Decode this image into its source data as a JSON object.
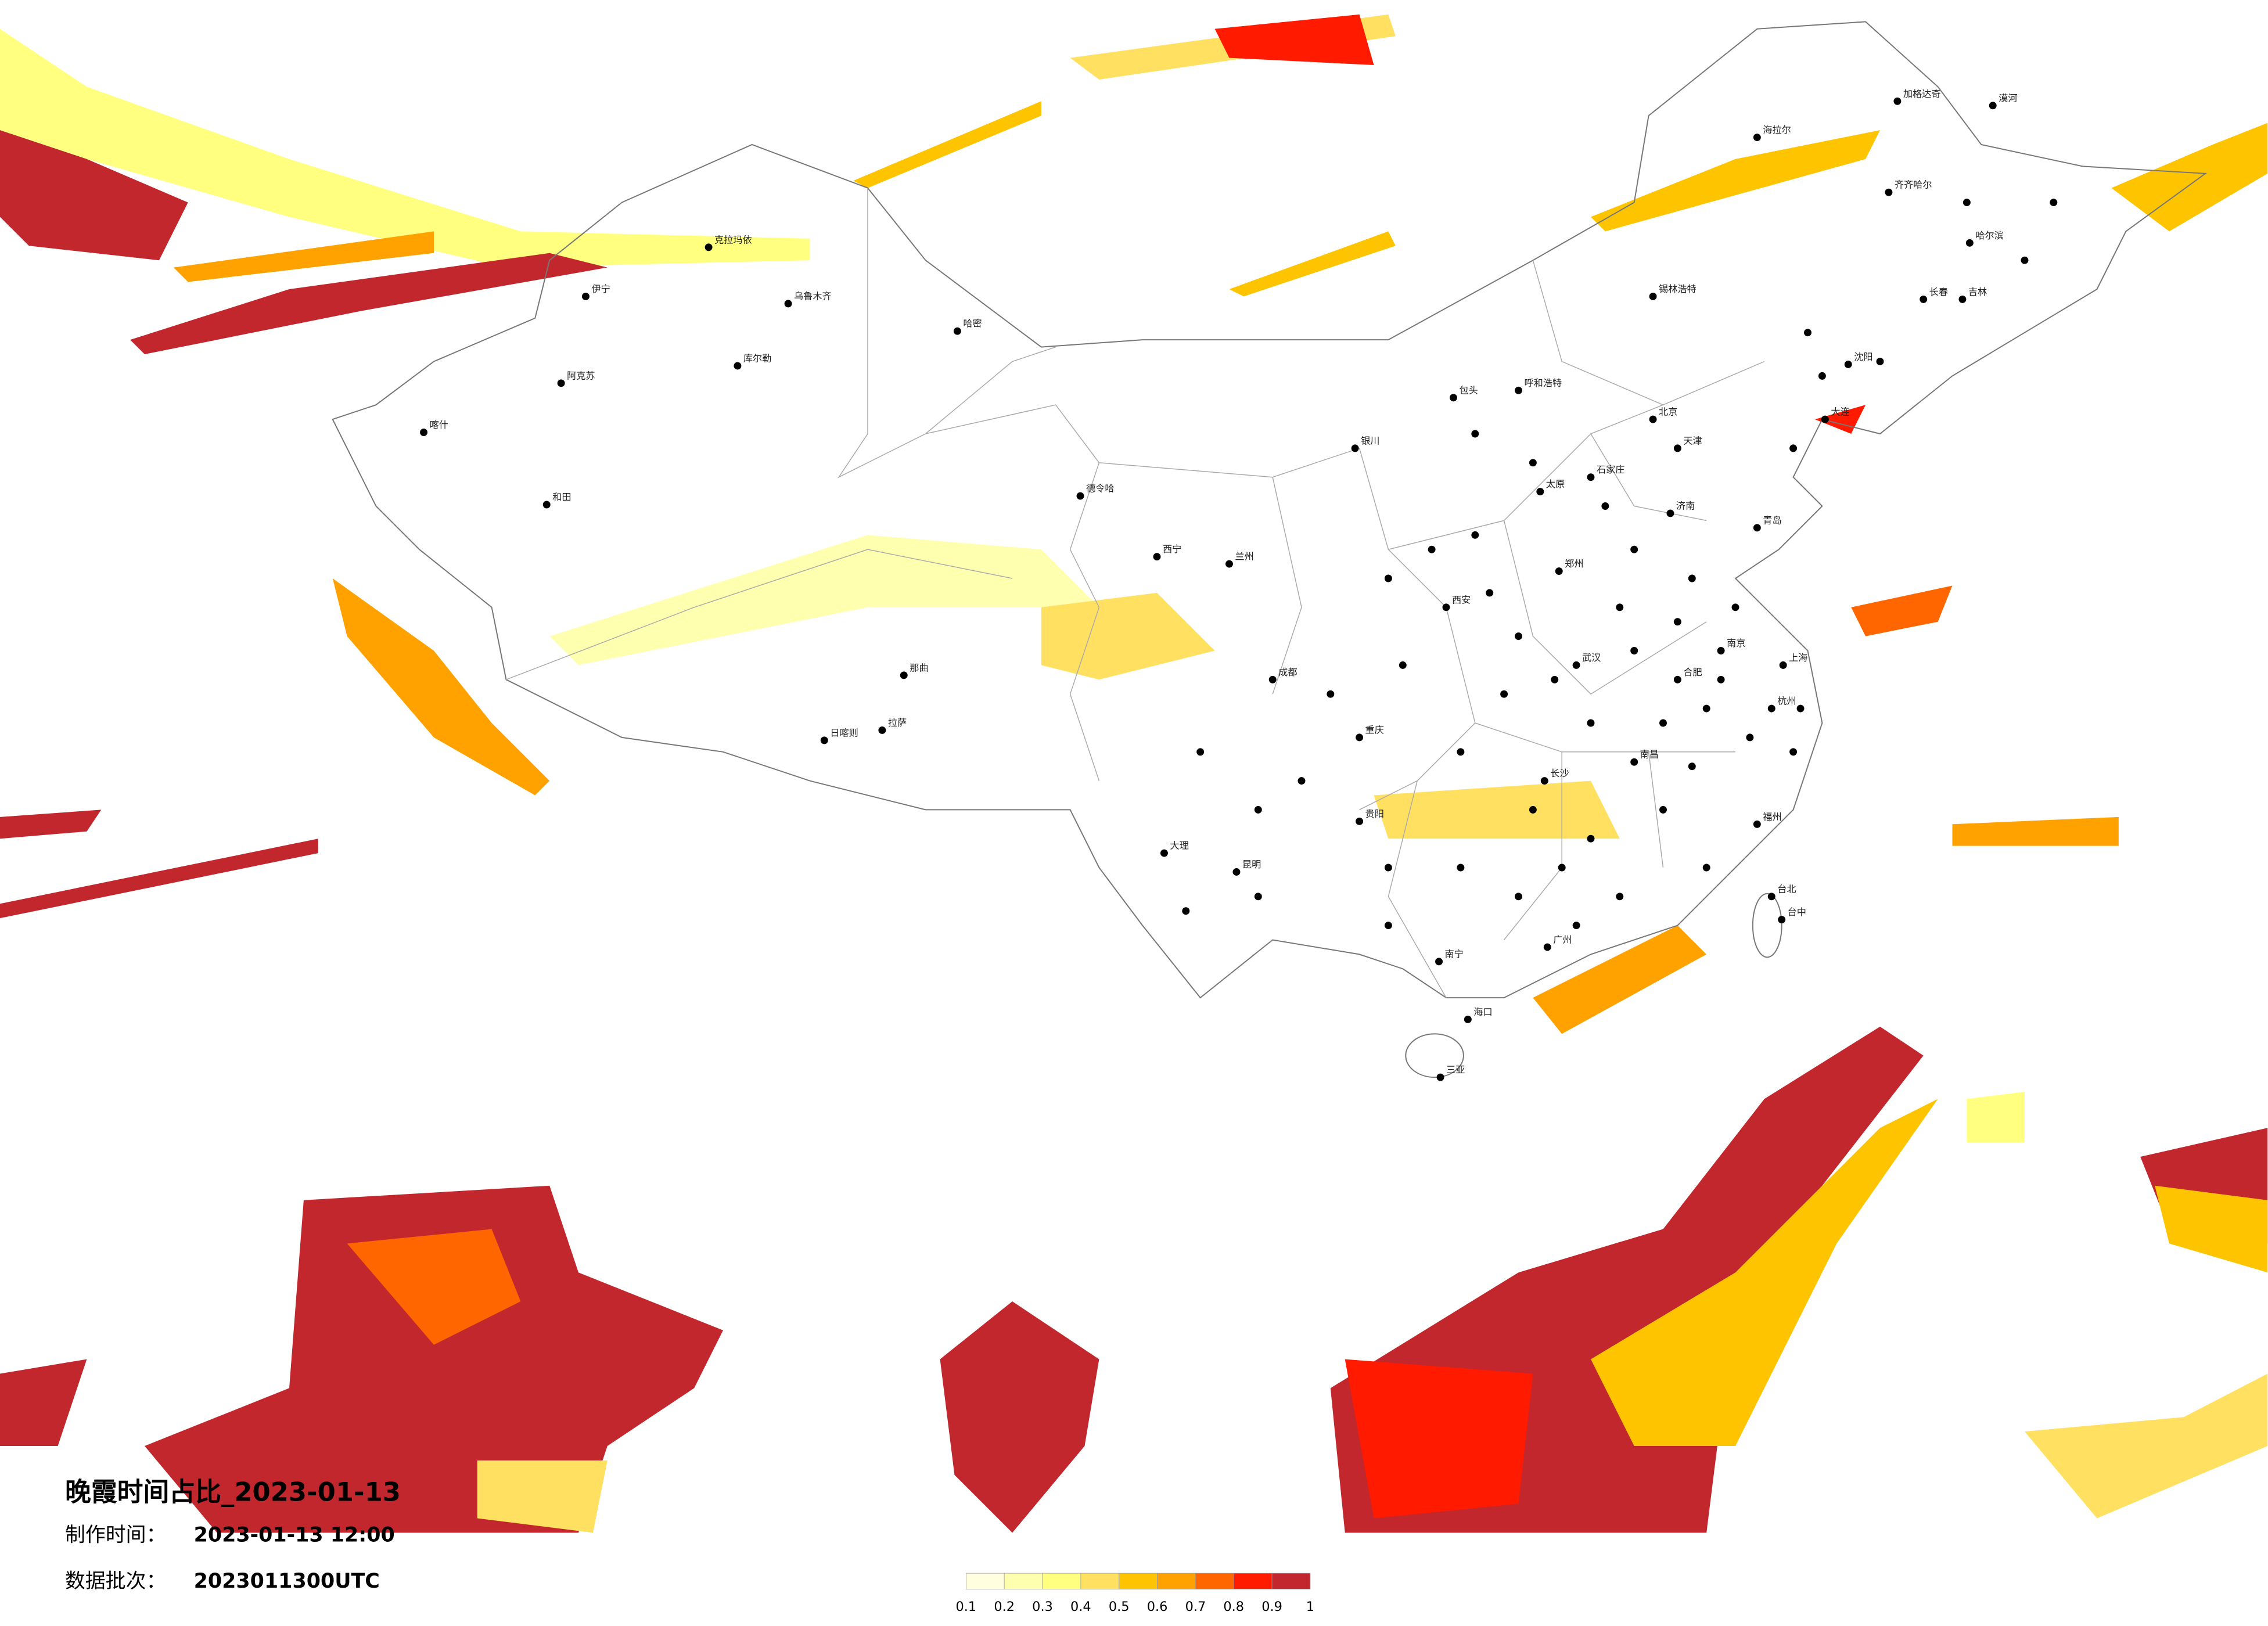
{
  "title": "晚霞时间占比_2023-01-13",
  "made_time_label": "制作时间：",
  "made_time": "2023-01-13 12:00",
  "batch_label": "数据批次：",
  "batch": "2023011300UTC",
  "colorbar": {
    "ticks": [
      0.1,
      0.2,
      0.3,
      0.4,
      0.5,
      0.6,
      0.7,
      0.8,
      0.9,
      1
    ],
    "colors": [
      "#ffffe0",
      "#ffffb0",
      "#ffff80",
      "#ffe060",
      "#ffc400",
      "#ffa200",
      "#ff6600",
      "#ff1a00",
      "#c1272d"
    ]
  },
  "cities": [
    "漠河",
    "加格达奇",
    "海拉尔",
    "齐齐哈尔",
    "哈尔滨",
    "长春",
    "吉林",
    "沈阳",
    "大连",
    "呼和浩特",
    "包头",
    "锡林浩特",
    "银川",
    "兰州",
    "西宁",
    "德令哈",
    "拉萨",
    "日喀则",
    "那曲",
    "和田",
    "喀什",
    "阿克苏",
    "库尔勒",
    "乌鲁木齐",
    "哈密",
    "伊宁",
    "克拉玛依",
    "昆明",
    "大理",
    "贵阳",
    "南宁",
    "海口",
    "三亚",
    "长沙",
    "南昌",
    "福州",
    "杭州",
    "南京",
    "合肥",
    "郑州",
    "济南",
    "太原",
    "石家庄",
    "青岛",
    "北京",
    "天津",
    "上海",
    "广州",
    "成都",
    "重庆",
    "西安",
    "武汉",
    "台北",
    "台中"
  ]
}
